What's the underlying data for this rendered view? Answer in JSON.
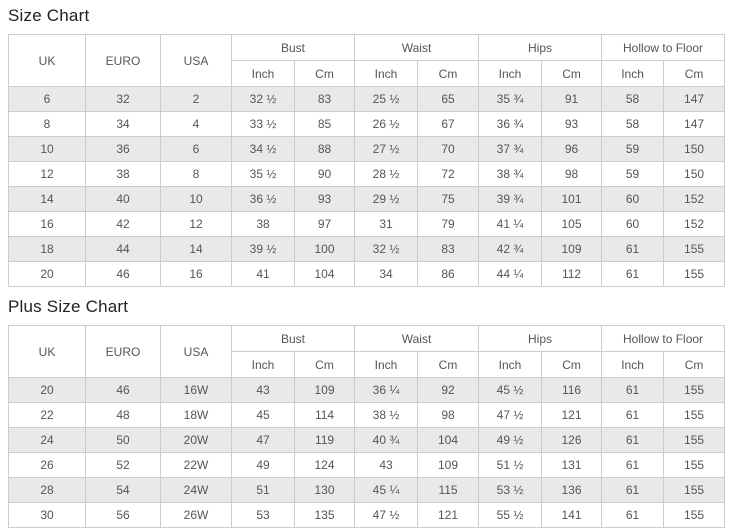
{
  "colors": {
    "stripe_row": "#e9e9e9",
    "table_border": "#cccccc",
    "cell_text": "#555555",
    "title_text": "#222222",
    "page_background": "#ffffff"
  },
  "size_chart": {
    "title": "Size Chart",
    "header": {
      "uk": "UK",
      "euro": "EURO",
      "usa": "USA",
      "groups": [
        "Bust",
        "Waist",
        "Hips",
        "Hollow to Floor"
      ],
      "inch": "Inch",
      "cm": "Cm"
    },
    "rows": [
      [
        "6",
        "32",
        "2",
        "32 ½",
        "83",
        "25 ½",
        "65",
        "35 ¾",
        "91",
        "58",
        "147"
      ],
      [
        "8",
        "34",
        "4",
        "33 ½",
        "85",
        "26 ½",
        "67",
        "36 ¾",
        "93",
        "58",
        "147"
      ],
      [
        "10",
        "36",
        "6",
        "34 ½",
        "88",
        "27 ½",
        "70",
        "37 ¾",
        "96",
        "59",
        "150"
      ],
      [
        "12",
        "38",
        "8",
        "35 ½",
        "90",
        "28 ½",
        "72",
        "38 ¾",
        "98",
        "59",
        "150"
      ],
      [
        "14",
        "40",
        "10",
        "36 ½",
        "93",
        "29 ½",
        "75",
        "39 ¾",
        "101",
        "60",
        "152"
      ],
      [
        "16",
        "42",
        "12",
        "38",
        "97",
        "31",
        "79",
        "41 ¼",
        "105",
        "60",
        "152"
      ],
      [
        "18",
        "44",
        "14",
        "39 ½",
        "100",
        "32 ½",
        "83",
        "42 ¾",
        "109",
        "61",
        "155"
      ],
      [
        "20",
        "46",
        "16",
        "41",
        "104",
        "34",
        "86",
        "44 ¼",
        "112",
        "61",
        "155"
      ]
    ]
  },
  "plus_size_chart": {
    "title": "Plus Size Chart",
    "header": {
      "uk": "UK",
      "euro": "EURO",
      "usa": "USA",
      "groups": [
        "Bust",
        "Waist",
        "Hips",
        "Hollow to Floor"
      ],
      "inch": "Inch",
      "cm": "Cm"
    },
    "rows": [
      [
        "20",
        "46",
        "16W",
        "43",
        "109",
        "36 ¼",
        "92",
        "45 ½",
        "116",
        "61",
        "155"
      ],
      [
        "22",
        "48",
        "18W",
        "45",
        "114",
        "38 ½",
        "98",
        "47 ½",
        "121",
        "61",
        "155"
      ],
      [
        "24",
        "50",
        "20W",
        "47",
        "119",
        "40 ¾",
        "104",
        "49 ½",
        "126",
        "61",
        "155"
      ],
      [
        "26",
        "52",
        "22W",
        "49",
        "124",
        "43",
        "109",
        "51 ½",
        "131",
        "61",
        "155"
      ],
      [
        "28",
        "54",
        "24W",
        "51",
        "130",
        "45 ¼",
        "115",
        "53 ½",
        "136",
        "61",
        "155"
      ],
      [
        "30",
        "56",
        "26W",
        "53",
        "135",
        "47 ½",
        "121",
        "55 ½",
        "141",
        "61",
        "155"
      ]
    ]
  }
}
